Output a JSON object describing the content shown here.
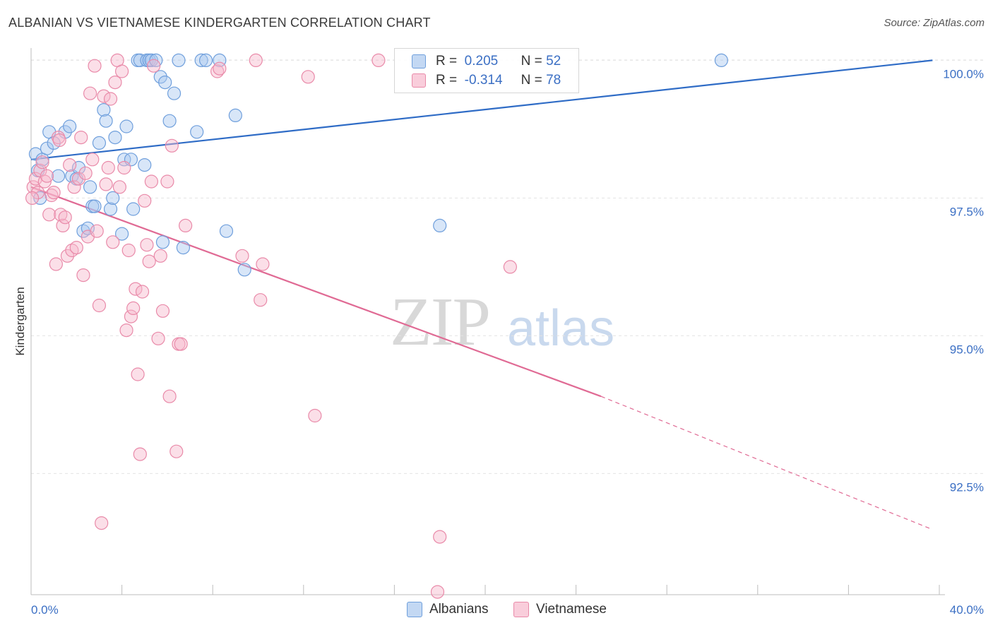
{
  "title": "ALBANIAN VS VIETNAMESE KINDERGARTEN CORRELATION CHART",
  "source": "Source: ZipAtlas.com",
  "watermark": {
    "zip": "ZIP",
    "atlas": "atlas"
  },
  "legend": {
    "rows": [
      {
        "r_label": "R =",
        "r_value": "0.205",
        "n_label": "N =",
        "n_value": "52",
        "color": "#a9c7ef",
        "stroke": "#6f9fdc"
      },
      {
        "r_label": "R =",
        "r_value": "-0.314",
        "n_label": "N =",
        "n_value": "78",
        "color": "#f7b9cd",
        "stroke": "#e98aa9"
      }
    ]
  },
  "bottom_legend": [
    "Albanians",
    "Vietnamese"
  ],
  "chart_data": {
    "type": "scatter",
    "ylabel": "Kindergarten",
    "xlim": [
      0,
      40
    ],
    "ylim": [
      90.3,
      100.3
    ],
    "x_tick_labels": [
      "0.0%",
      "40.0%"
    ],
    "y_ticks": [
      92.5,
      95.0,
      97.5,
      100.0
    ],
    "y_tick_labels": [
      "92.5%",
      "95.0%",
      "97.5%",
      "100.0%"
    ],
    "grid": true,
    "series": [
      {
        "name": "Albanians",
        "color": "#a9c7ef",
        "stroke": "#6f9fdc",
        "line_color": "#2f6cc6",
        "trend": {
          "x": [
            0,
            39.7
          ],
          "y": [
            98.2,
            100.0
          ],
          "dashed_from": null
        },
        "points": [
          [
            0.2,
            98.3
          ],
          [
            0.3,
            98.0
          ],
          [
            0.4,
            97.5
          ],
          [
            0.5,
            98.2
          ],
          [
            0.7,
            98.4
          ],
          [
            0.8,
            98.7
          ],
          [
            1.0,
            98.5
          ],
          [
            1.2,
            97.9
          ],
          [
            1.5,
            98.7
          ],
          [
            1.7,
            98.8
          ],
          [
            1.8,
            97.9
          ],
          [
            2.0,
            97.85
          ],
          [
            2.1,
            98.05
          ],
          [
            2.3,
            96.9
          ],
          [
            2.5,
            96.95
          ],
          [
            2.6,
            97.7
          ],
          [
            2.7,
            97.35
          ],
          [
            2.8,
            97.35
          ],
          [
            3.0,
            98.5
          ],
          [
            3.2,
            99.1
          ],
          [
            3.3,
            98.9
          ],
          [
            3.5,
            97.3
          ],
          [
            3.6,
            97.5
          ],
          [
            3.7,
            98.6
          ],
          [
            4.0,
            96.85
          ],
          [
            4.1,
            98.2
          ],
          [
            4.2,
            98.8
          ],
          [
            4.4,
            98.2
          ],
          [
            4.5,
            97.3
          ],
          [
            4.7,
            100.0
          ],
          [
            4.8,
            100.0
          ],
          [
            5.0,
            98.1
          ],
          [
            5.1,
            100.0
          ],
          [
            5.2,
            100.0
          ],
          [
            5.3,
            100.0
          ],
          [
            5.5,
            100.0
          ],
          [
            5.7,
            99.7
          ],
          [
            5.8,
            96.7
          ],
          [
            5.9,
            99.6
          ],
          [
            6.1,
            98.9
          ],
          [
            6.3,
            99.4
          ],
          [
            6.5,
            100.0
          ],
          [
            6.7,
            96.6
          ],
          [
            7.3,
            98.7
          ],
          [
            7.5,
            100.0
          ],
          [
            7.7,
            100.0
          ],
          [
            8.3,
            100.0
          ],
          [
            8.6,
            96.9
          ],
          [
            9.0,
            99.0
          ],
          [
            9.4,
            96.2
          ],
          [
            18.0,
            97.0
          ],
          [
            30.4,
            100.0
          ]
        ]
      },
      {
        "name": "Vietnamese",
        "color": "#f7b9cd",
        "stroke": "#e98aa9",
        "line_color": "#e06a94",
        "trend": {
          "x": [
            0,
            25.1
          ],
          "y": [
            97.7,
            93.9
          ],
          "dashed_to": [
            39.6,
            91.5
          ]
        },
        "points": [
          [
            0.1,
            97.7
          ],
          [
            0.2,
            97.85
          ],
          [
            0.3,
            97.6
          ],
          [
            0.4,
            98.0
          ],
          [
            0.5,
            98.15
          ],
          [
            0.6,
            97.8
          ],
          [
            0.7,
            97.9
          ],
          [
            0.8,
            97.2
          ],
          [
            0.9,
            97.55
          ],
          [
            1.0,
            97.6
          ],
          [
            1.1,
            96.3
          ],
          [
            1.2,
            98.6
          ],
          [
            1.3,
            97.2
          ],
          [
            1.4,
            97.0
          ],
          [
            1.5,
            97.15
          ],
          [
            1.6,
            96.45
          ],
          [
            1.7,
            98.1
          ],
          [
            1.8,
            96.55
          ],
          [
            1.9,
            97.7
          ],
          [
            2.0,
            96.6
          ],
          [
            2.1,
            97.85
          ],
          [
            2.2,
            98.6
          ],
          [
            2.3,
            96.1
          ],
          [
            2.4,
            97.95
          ],
          [
            2.5,
            96.8
          ],
          [
            2.6,
            99.4
          ],
          [
            2.7,
            98.2
          ],
          [
            2.8,
            99.9
          ],
          [
            2.9,
            96.9
          ],
          [
            3.0,
            95.55
          ],
          [
            3.1,
            91.6
          ],
          [
            3.2,
            99.35
          ],
          [
            3.3,
            97.75
          ],
          [
            3.4,
            98.05
          ],
          [
            3.5,
            99.3
          ],
          [
            3.6,
            96.7
          ],
          [
            3.7,
            99.6
          ],
          [
            3.8,
            100.0
          ],
          [
            3.9,
            97.7
          ],
          [
            4.0,
            99.8
          ],
          [
            4.1,
            98.05
          ],
          [
            4.2,
            95.1
          ],
          [
            4.3,
            96.55
          ],
          [
            4.4,
            95.35
          ],
          [
            4.5,
            95.5
          ],
          [
            4.6,
            95.85
          ],
          [
            4.7,
            94.3
          ],
          [
            4.8,
            92.85
          ],
          [
            4.9,
            95.8
          ],
          [
            5.0,
            97.45
          ],
          [
            5.1,
            96.65
          ],
          [
            5.2,
            96.35
          ],
          [
            5.3,
            97.8
          ],
          [
            5.4,
            99.9
          ],
          [
            5.6,
            94.95
          ],
          [
            5.7,
            96.45
          ],
          [
            5.8,
            95.45
          ],
          [
            6.0,
            97.8
          ],
          [
            6.1,
            93.9
          ],
          [
            6.2,
            98.45
          ],
          [
            6.4,
            92.9
          ],
          [
            6.5,
            94.85
          ],
          [
            6.6,
            94.85
          ],
          [
            6.8,
            97.0
          ],
          [
            8.2,
            99.8
          ],
          [
            8.3,
            99.85
          ],
          [
            9.3,
            96.45
          ],
          [
            9.9,
            100.0
          ],
          [
            10.1,
            95.65
          ],
          [
            10.2,
            96.3
          ],
          [
            12.2,
            99.7
          ],
          [
            12.5,
            93.55
          ],
          [
            15.3,
            100.0
          ],
          [
            17.9,
            90.35
          ],
          [
            18.0,
            91.35
          ],
          [
            21.1,
            96.25
          ],
          [
            0.05,
            97.5
          ],
          [
            1.25,
            98.55
          ]
        ]
      }
    ]
  }
}
